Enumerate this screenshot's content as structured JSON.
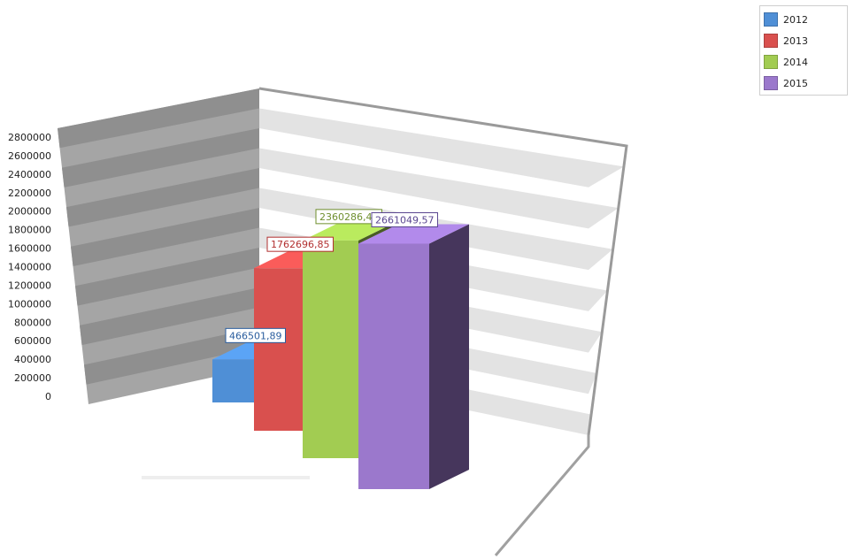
{
  "chart_data": {
    "type": "bar",
    "title": "",
    "xlabel": "",
    "ylabel": "",
    "ylim": [
      0,
      2800000
    ],
    "y_ticks": [
      "0",
      "200000",
      "400000",
      "600000",
      "800000",
      "1000000",
      "1200000",
      "1400000",
      "1600000",
      "1800000",
      "2000000",
      "2200000",
      "2400000",
      "2600000",
      "2800000"
    ],
    "grid": true,
    "legend_placement": "top-right",
    "series": [
      {
        "name": "2012",
        "value": 466501.89,
        "label": "466501,89",
        "color": "#4f8fd6",
        "label_color": "#2a5d9e"
      },
      {
        "name": "2013",
        "value": 1762696.85,
        "label": "1762696,85",
        "color": "#d9504e",
        "label_color": "#b23030"
      },
      {
        "name": "2014",
        "value": 2360286.48,
        "label": "2360286,48",
        "color": "#a2cc52",
        "label_color": "#6f8f2e"
      },
      {
        "name": "2015",
        "value": 2661049.57,
        "label": "2661049,57",
        "color": "#9b78cc",
        "label_color": "#5a4690"
      }
    ]
  }
}
